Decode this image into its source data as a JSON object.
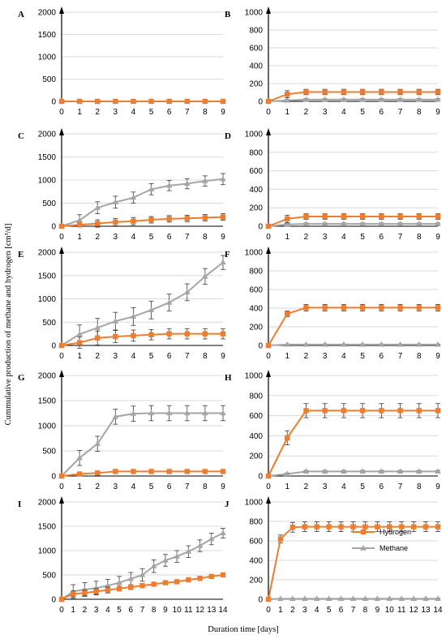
{
  "chart_data": {
    "type": "line",
    "ylabel": "Cummulative production of methane and hydrogen [cm³/d]",
    "xlabel": "Duration time [days]",
    "legend": {
      "placement": "inside panel J, right",
      "entries": [
        "Hydrogen",
        "Methane"
      ]
    },
    "colors": {
      "Hydrogen": "#ED7D31",
      "Methane": "#A5A5A5",
      "grid": "#d9d9d9",
      "axis": "#000000"
    },
    "markers": {
      "Hydrogen": "square",
      "Methane": "triangle"
    },
    "grid": true,
    "panels": [
      {
        "label": "A",
        "xlim": [
          0,
          9
        ],
        "ylim": [
          0,
          2000
        ],
        "yticks": [
          0,
          500,
          1000,
          1500,
          2000
        ],
        "series": [
          {
            "name": "Hydrogen",
            "x": [
              0,
              1,
              2,
              3,
              4,
              5,
              6,
              7,
              8,
              9
            ],
            "y": [
              0,
              0,
              0,
              0,
              0,
              0,
              0,
              0,
              0,
              0
            ],
            "err": []
          },
          {
            "name": "Methane",
            "x": [
              0,
              1,
              2,
              3,
              4,
              5,
              6,
              7,
              8,
              9
            ],
            "y": [
              0,
              0,
              0,
              0,
              0,
              0,
              0,
              0,
              0,
              0
            ],
            "err": []
          }
        ]
      },
      {
        "label": "B",
        "xlim": [
          0,
          9
        ],
        "ylim": [
          0,
          1000
        ],
        "yticks": [
          0,
          200,
          400,
          600,
          800,
          1000
        ],
        "series": [
          {
            "name": "Hydrogen",
            "x": [
              0,
              1,
              2,
              3,
              4,
              5,
              6,
              7,
              8,
              9
            ],
            "y": [
              0,
              80,
              105,
              105,
              105,
              105,
              105,
              105,
              105,
              105
            ],
            "err": [
              0,
              40,
              30,
              30,
              30,
              30,
              30,
              30,
              30,
              30
            ]
          },
          {
            "name": "Methane",
            "x": [
              0,
              1,
              2,
              3,
              4,
              5,
              6,
              7,
              8,
              9
            ],
            "y": [
              0,
              10,
              20,
              20,
              20,
              20,
              20,
              20,
              20,
              20
            ],
            "err": [
              0,
              10,
              10,
              10,
              10,
              10,
              10,
              10,
              10,
              10
            ]
          }
        ]
      },
      {
        "label": "C",
        "xlim": [
          0,
          9
        ],
        "ylim": [
          0,
          2000
        ],
        "yticks": [
          0,
          500,
          1000,
          1500,
          2000
        ],
        "series": [
          {
            "name": "Hydrogen",
            "x": [
              0,
              1,
              2,
              3,
              4,
              5,
              6,
              7,
              8,
              9
            ],
            "y": [
              0,
              30,
              60,
              90,
              110,
              140,
              160,
              170,
              185,
              200
            ],
            "err": [
              0,
              50,
              80,
              80,
              80,
              70,
              70,
              70,
              70,
              70
            ]
          },
          {
            "name": "Methane",
            "x": [
              0,
              1,
              2,
              3,
              4,
              5,
              6,
              7,
              8,
              9
            ],
            "y": [
              0,
              130,
              400,
              520,
              620,
              800,
              880,
              920,
              980,
              1020
            ],
            "err": [
              0,
              120,
              130,
              130,
              120,
              120,
              110,
              110,
              110,
              120
            ]
          }
        ]
      },
      {
        "label": "D",
        "xlim": [
          0,
          9
        ],
        "ylim": [
          0,
          1000
        ],
        "yticks": [
          0,
          200,
          400,
          600,
          800,
          1000
        ],
        "series": [
          {
            "name": "Hydrogen",
            "x": [
              0,
              1,
              2,
              3,
              4,
              5,
              6,
              7,
              8,
              9
            ],
            "y": [
              0,
              80,
              105,
              105,
              105,
              105,
              105,
              105,
              105,
              105
            ],
            "err": [
              0,
              40,
              30,
              30,
              30,
              30,
              30,
              30,
              30,
              30
            ]
          },
          {
            "name": "Methane",
            "x": [
              0,
              1,
              2,
              3,
              4,
              5,
              6,
              7,
              8,
              9
            ],
            "y": [
              0,
              20,
              25,
              25,
              25,
              25,
              25,
              25,
              25,
              25
            ],
            "err": [
              0,
              10,
              10,
              10,
              10,
              10,
              10,
              10,
              10,
              10
            ]
          }
        ]
      },
      {
        "label": "E",
        "xlim": [
          0,
          9
        ],
        "ylim": [
          0,
          2000
        ],
        "yticks": [
          0,
          500,
          1000,
          1500,
          2000
        ],
        "series": [
          {
            "name": "Hydrogen",
            "x": [
              0,
              1,
              2,
              3,
              4,
              5,
              6,
              7,
              8,
              9
            ],
            "y": [
              0,
              60,
              160,
              190,
              210,
              230,
              250,
              250,
              250,
              250
            ],
            "err": [
              0,
              120,
              150,
              130,
              120,
              110,
              110,
              110,
              110,
              110
            ]
          },
          {
            "name": "Methane",
            "x": [
              0,
              1,
              2,
              3,
              4,
              5,
              6,
              7,
              8,
              9
            ],
            "y": [
              0,
              240,
              380,
              520,
              620,
              760,
              920,
              1140,
              1480,
              1780
            ],
            "err": [
              0,
              200,
              200,
              190,
              190,
              190,
              180,
              180,
              170,
              150
            ]
          }
        ]
      },
      {
        "label": "F",
        "xlim": [
          0,
          9
        ],
        "ylim": [
          0,
          1000
        ],
        "yticks": [
          0,
          200,
          400,
          600,
          800,
          1000
        ],
        "series": [
          {
            "name": "Hydrogen",
            "x": [
              0,
              1,
              2,
              3,
              4,
              5,
              6,
              7,
              8,
              9
            ],
            "y": [
              0,
              340,
              405,
              405,
              405,
              405,
              405,
              405,
              405,
              405
            ],
            "err": [
              0,
              30,
              35,
              35,
              35,
              35,
              35,
              35,
              35,
              35
            ]
          },
          {
            "name": "Methane",
            "x": [
              0,
              1,
              2,
              3,
              4,
              5,
              6,
              7,
              8,
              9
            ],
            "y": [
              0,
              10,
              10,
              10,
              10,
              10,
              10,
              10,
              10,
              10
            ],
            "err": [
              0,
              5,
              5,
              5,
              5,
              5,
              5,
              5,
              5,
              5
            ]
          }
        ]
      },
      {
        "label": "G",
        "xlim": [
          0,
          9
        ],
        "ylim": [
          0,
          2000
        ],
        "yticks": [
          0,
          500,
          1000,
          1500,
          2000
        ],
        "series": [
          {
            "name": "Hydrogen",
            "x": [
              0,
              1,
              2,
              3,
              4,
              5,
              6,
              7,
              8,
              9
            ],
            "y": [
              0,
              40,
              60,
              90,
              90,
              90,
              90,
              90,
              90,
              90
            ],
            "err": [
              0,
              40,
              40,
              30,
              30,
              30,
              30,
              30,
              30,
              30
            ]
          },
          {
            "name": "Methane",
            "x": [
              0,
              1,
              2,
              3,
              4,
              5,
              6,
              7,
              8,
              9
            ],
            "y": [
              0,
              360,
              640,
              1180,
              1240,
              1250,
              1250,
              1250,
              1250,
              1250
            ],
            "err": [
              0,
              150,
              150,
              150,
              150,
              150,
              150,
              150,
              150,
              150
            ]
          }
        ]
      },
      {
        "label": "H",
        "xlim": [
          0,
          9
        ],
        "ylim": [
          0,
          1000
        ],
        "yticks": [
          0,
          200,
          400,
          600,
          800,
          1000
        ],
        "series": [
          {
            "name": "Hydrogen",
            "x": [
              0,
              1,
              2,
              3,
              4,
              5,
              6,
              7,
              8,
              9
            ],
            "y": [
              0,
              380,
              650,
              650,
              650,
              650,
              650,
              650,
              650,
              650
            ],
            "err": [
              0,
              70,
              70,
              70,
              70,
              70,
              70,
              70,
              70,
              70
            ]
          },
          {
            "name": "Methane",
            "x": [
              0,
              1,
              2,
              3,
              4,
              5,
              6,
              7,
              8,
              9
            ],
            "y": [
              0,
              20,
              45,
              45,
              45,
              45,
              45,
              45,
              45,
              45
            ],
            "err": [
              0,
              10,
              10,
              10,
              10,
              10,
              10,
              10,
              10,
              10
            ]
          }
        ]
      },
      {
        "label": "I",
        "xlim": [
          0,
          14
        ],
        "ylim": [
          0,
          2000
        ],
        "yticks": [
          0,
          500,
          1000,
          1500,
          2000
        ],
        "series": [
          {
            "name": "Hydrogen",
            "x": [
              0,
              1,
              2,
              3,
              4,
              5,
              6,
              7,
              8,
              9,
              10,
              11,
              12,
              13,
              14
            ],
            "y": [
              0,
              110,
              130,
              160,
              190,
              220,
              250,
              280,
              310,
              340,
              360,
              400,
              430,
              470,
              500
            ],
            "err": [
              0,
              60,
              60,
              60,
              60,
              50,
              50,
              40,
              40,
              40,
              40,
              30,
              30,
              30,
              30
            ]
          },
          {
            "name": "Methane",
            "x": [
              0,
              1,
              2,
              3,
              4,
              5,
              6,
              7,
              8,
              9,
              10,
              11,
              12,
              13,
              14
            ],
            "y": [
              0,
              160,
              200,
              230,
              280,
              340,
              420,
              500,
              680,
              800,
              880,
              980,
              1100,
              1240,
              1360
            ],
            "err": [
              0,
              140,
              140,
              140,
              130,
              130,
              130,
              130,
              130,
              120,
              120,
              120,
              120,
              120,
              100
            ]
          }
        ]
      },
      {
        "label": "J",
        "xlim": [
          0,
          14
        ],
        "ylim": [
          0,
          1000
        ],
        "yticks": [
          0,
          200,
          400,
          600,
          800,
          1000
        ],
        "series": [
          {
            "name": "Hydrogen",
            "x": [
              0,
              1,
              2,
              3,
              4,
              5,
              6,
              7,
              8,
              9,
              10,
              11,
              12,
              13,
              14
            ],
            "y": [
              0,
              620,
              740,
              745,
              745,
              745,
              745,
              745,
              745,
              745,
              745,
              745,
              745,
              745,
              745
            ],
            "err": [
              0,
              40,
              50,
              50,
              50,
              50,
              50,
              50,
              50,
              50,
              50,
              50,
              50,
              50,
              50
            ]
          },
          {
            "name": "Methane",
            "x": [
              0,
              1,
              2,
              3,
              4,
              5,
              6,
              7,
              8,
              9,
              10,
              11,
              12,
              13,
              14
            ],
            "y": [
              0,
              5,
              5,
              5,
              5,
              5,
              5,
              5,
              5,
              5,
              5,
              5,
              5,
              5,
              5
            ],
            "err": [
              0,
              5,
              5,
              5,
              5,
              5,
              5,
              5,
              5,
              5,
              5,
              5,
              5,
              5,
              5
            ]
          }
        ]
      }
    ]
  }
}
